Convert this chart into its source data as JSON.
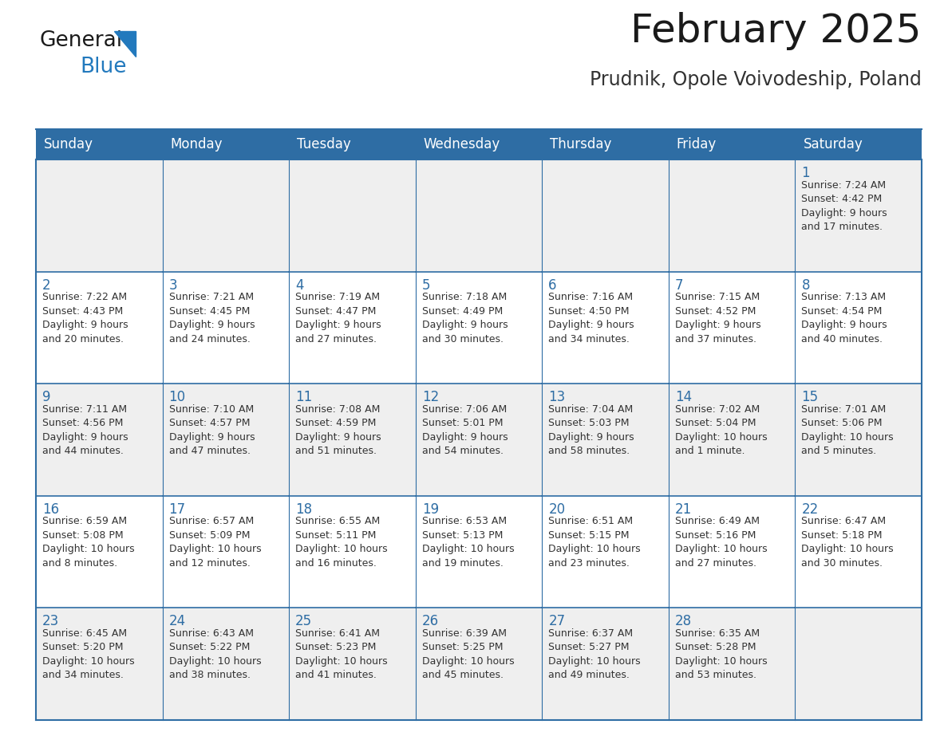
{
  "title": "February 2025",
  "subtitle": "Prudnik, Opole Voivodeship, Poland",
  "header_bg": "#2E6DA4",
  "header_text_color": "#FFFFFF",
  "cell_bg_light": "#EFEFEF",
  "cell_bg_white": "#FFFFFF",
  "day_number_color": "#2E6DA4",
  "cell_text_color": "#333333",
  "border_color": "#2E6DA4",
  "days_of_week": [
    "Sunday",
    "Monday",
    "Tuesday",
    "Wednesday",
    "Thursday",
    "Friday",
    "Saturday"
  ],
  "weeks": [
    [
      {
        "day": "",
        "sunrise": "",
        "sunset": "",
        "daylight": ""
      },
      {
        "day": "",
        "sunrise": "",
        "sunset": "",
        "daylight": ""
      },
      {
        "day": "",
        "sunrise": "",
        "sunset": "",
        "daylight": ""
      },
      {
        "day": "",
        "sunrise": "",
        "sunset": "",
        "daylight": ""
      },
      {
        "day": "",
        "sunrise": "",
        "sunset": "",
        "daylight": ""
      },
      {
        "day": "",
        "sunrise": "",
        "sunset": "",
        "daylight": ""
      },
      {
        "day": "1",
        "sunrise": "7:24 AM",
        "sunset": "4:42 PM",
        "daylight": "9 hours\nand 17 minutes."
      }
    ],
    [
      {
        "day": "2",
        "sunrise": "7:22 AM",
        "sunset": "4:43 PM",
        "daylight": "9 hours\nand 20 minutes."
      },
      {
        "day": "3",
        "sunrise": "7:21 AM",
        "sunset": "4:45 PM",
        "daylight": "9 hours\nand 24 minutes."
      },
      {
        "day": "4",
        "sunrise": "7:19 AM",
        "sunset": "4:47 PM",
        "daylight": "9 hours\nand 27 minutes."
      },
      {
        "day": "5",
        "sunrise": "7:18 AM",
        "sunset": "4:49 PM",
        "daylight": "9 hours\nand 30 minutes."
      },
      {
        "day": "6",
        "sunrise": "7:16 AM",
        "sunset": "4:50 PM",
        "daylight": "9 hours\nand 34 minutes."
      },
      {
        "day": "7",
        "sunrise": "7:15 AM",
        "sunset": "4:52 PM",
        "daylight": "9 hours\nand 37 minutes."
      },
      {
        "day": "8",
        "sunrise": "7:13 AM",
        "sunset": "4:54 PM",
        "daylight": "9 hours\nand 40 minutes."
      }
    ],
    [
      {
        "day": "9",
        "sunrise": "7:11 AM",
        "sunset": "4:56 PM",
        "daylight": "9 hours\nand 44 minutes."
      },
      {
        "day": "10",
        "sunrise": "7:10 AM",
        "sunset": "4:57 PM",
        "daylight": "9 hours\nand 47 minutes."
      },
      {
        "day": "11",
        "sunrise": "7:08 AM",
        "sunset": "4:59 PM",
        "daylight": "9 hours\nand 51 minutes."
      },
      {
        "day": "12",
        "sunrise": "7:06 AM",
        "sunset": "5:01 PM",
        "daylight": "9 hours\nand 54 minutes."
      },
      {
        "day": "13",
        "sunrise": "7:04 AM",
        "sunset": "5:03 PM",
        "daylight": "9 hours\nand 58 minutes."
      },
      {
        "day": "14",
        "sunrise": "7:02 AM",
        "sunset": "5:04 PM",
        "daylight": "10 hours\nand 1 minute."
      },
      {
        "day": "15",
        "sunrise": "7:01 AM",
        "sunset": "5:06 PM",
        "daylight": "10 hours\nand 5 minutes."
      }
    ],
    [
      {
        "day": "16",
        "sunrise": "6:59 AM",
        "sunset": "5:08 PM",
        "daylight": "10 hours\nand 8 minutes."
      },
      {
        "day": "17",
        "sunrise": "6:57 AM",
        "sunset": "5:09 PM",
        "daylight": "10 hours\nand 12 minutes."
      },
      {
        "day": "18",
        "sunrise": "6:55 AM",
        "sunset": "5:11 PM",
        "daylight": "10 hours\nand 16 minutes."
      },
      {
        "day": "19",
        "sunrise": "6:53 AM",
        "sunset": "5:13 PM",
        "daylight": "10 hours\nand 19 minutes."
      },
      {
        "day": "20",
        "sunrise": "6:51 AM",
        "sunset": "5:15 PM",
        "daylight": "10 hours\nand 23 minutes."
      },
      {
        "day": "21",
        "sunrise": "6:49 AM",
        "sunset": "5:16 PM",
        "daylight": "10 hours\nand 27 minutes."
      },
      {
        "day": "22",
        "sunrise": "6:47 AM",
        "sunset": "5:18 PM",
        "daylight": "10 hours\nand 30 minutes."
      }
    ],
    [
      {
        "day": "23",
        "sunrise": "6:45 AM",
        "sunset": "5:20 PM",
        "daylight": "10 hours\nand 34 minutes."
      },
      {
        "day": "24",
        "sunrise": "6:43 AM",
        "sunset": "5:22 PM",
        "daylight": "10 hours\nand 38 minutes."
      },
      {
        "day": "25",
        "sunrise": "6:41 AM",
        "sunset": "5:23 PM",
        "daylight": "10 hours\nand 41 minutes."
      },
      {
        "day": "26",
        "sunrise": "6:39 AM",
        "sunset": "5:25 PM",
        "daylight": "10 hours\nand 45 minutes."
      },
      {
        "day": "27",
        "sunrise": "6:37 AM",
        "sunset": "5:27 PM",
        "daylight": "10 hours\nand 49 minutes."
      },
      {
        "day": "28",
        "sunrise": "6:35 AM",
        "sunset": "5:28 PM",
        "daylight": "10 hours\nand 53 minutes."
      },
      {
        "day": "",
        "sunrise": "",
        "sunset": "",
        "daylight": ""
      }
    ]
  ],
  "logo_general_color": "#1a1a1a",
  "logo_blue_color": "#2279BD",
  "title_color": "#1a1a1a",
  "subtitle_color": "#333333",
  "fig_width": 11.88,
  "fig_height": 9.18,
  "title_fontsize": 36,
  "subtitle_fontsize": 17,
  "header_fontsize": 12,
  "day_num_fontsize": 12,
  "cell_text_fontsize": 9
}
